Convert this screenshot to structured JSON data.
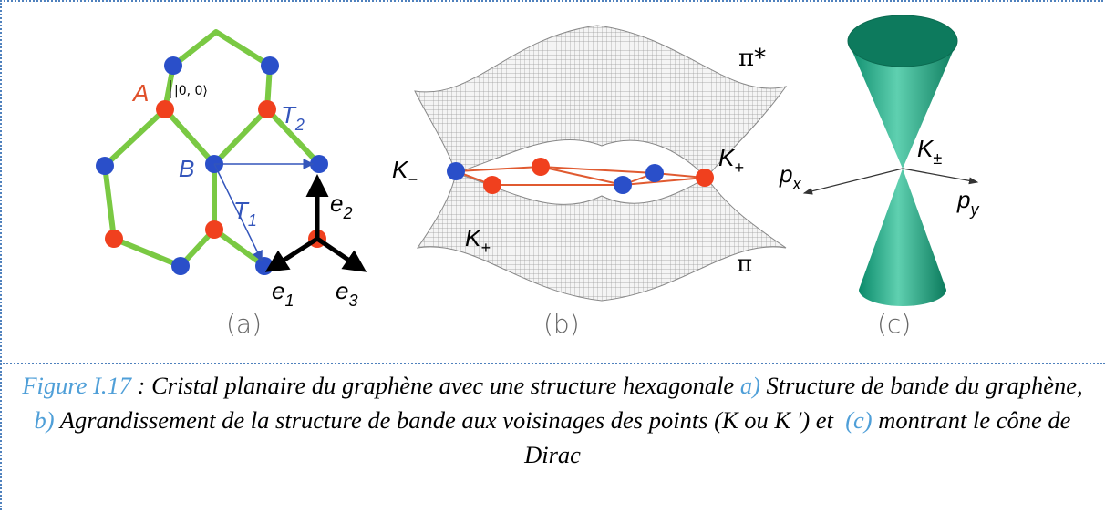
{
  "figure": {
    "panels": [
      {
        "label": "(a)",
        "annotations": [
          {
            "text": "A"
          },
          {
            "text": "|0, 0⟩"
          },
          {
            "text": "T",
            "sub": "2"
          },
          {
            "text": "B"
          },
          {
            "text": "T",
            "sub": "1"
          },
          {
            "text": "e",
            "sub": "2"
          },
          {
            "text": "e",
            "sub": "1"
          },
          {
            "text": "e",
            "sub": "3"
          }
        ]
      },
      {
        "label": "(b)",
        "annotations": [
          {
            "text": "K",
            "sub": "−"
          },
          {
            "text": "π*"
          },
          {
            "text": "K",
            "sub": "+"
          },
          {
            "text": "K",
            "sub": "+"
          },
          {
            "text": "π"
          }
        ]
      },
      {
        "label": "(c)",
        "annotations": [
          {
            "text": "p",
            "sub": "x"
          },
          {
            "text": "K",
            "sub": "±"
          },
          {
            "text": "p",
            "sub": "y"
          }
        ]
      }
    ],
    "caption": [
      {
        "text": "Figure I.17",
        "highlight": true
      },
      {
        "text": " : Cristal planaire du graphène avec une structure hexagonale "
      },
      {
        "text": "a)",
        "highlight": true
      },
      {
        "text": " Structure de bande du graphène, "
      },
      {
        "text": "b)",
        "highlight": true
      },
      {
        "text": " Agrandissement de la structure de bande aux voisinages des points (K ou K ') et  "
      },
      {
        "text": "(c)",
        "highlight": true
      },
      {
        "text": " montrant le cône de Dirac"
      }
    ]
  }
}
